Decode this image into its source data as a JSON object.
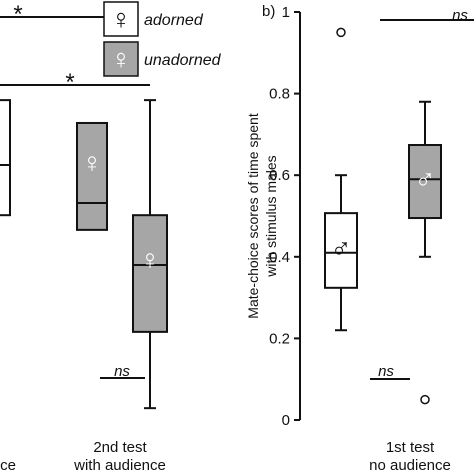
{
  "chart_data": [
    {
      "type": "box",
      "categories": [
        [
          "ce"
        ],
        [
          "2nd test",
          "with audience"
        ]
      ],
      "ylim": [
        0,
        1
      ],
      "annotations": [
        "*",
        "*",
        "ns"
      ],
      "series": [
        {
          "name": "adorned",
          "symbol": "♀",
          "color": "#ffffff",
          "boxes": [
            null,
            {
              "min": 0.213,
              "q1": 0.502,
              "median": 0.625,
              "q3": 0.784,
              "max": 0.784,
              "outliers": []
            }
          ]
        },
        {
          "name": "unadorned",
          "symbol": "♀",
          "color": "#a6a6a6",
          "boxes": [
            {
              "min": null,
              "q1": 0.466,
              "median": 0.532,
              "q3": 0.728,
              "max": null,
              "outliers": []
            },
            {
              "min": 0.029,
              "q1": 0.216,
              "median": 0.38,
              "q3": 0.502,
              "max": 0.784,
              "outliers": []
            }
          ]
        }
      ]
    },
    {
      "type": "box",
      "panel_label": "b)",
      "categories": [
        [
          "1st test",
          "no audience"
        ]
      ],
      "y_label": [
        "Mate-choice scores of time spent",
        "with stimulus males"
      ],
      "ylim": [
        0,
        1
      ],
      "yticks": [
        0,
        0.2,
        0.4,
        0.6,
        0.8,
        1
      ],
      "annotations": [
        "ns",
        "ns"
      ],
      "series": [
        {
          "symbol": "♂",
          "color": "#ffffff",
          "boxes": [
            {
              "min": 0.22,
              "q1": 0.324,
              "median": 0.41,
              "q3": 0.507,
              "max": 0.6,
              "outliers": [
                0.95
              ]
            }
          ]
        },
        {
          "symbol": "♂",
          "color": "#a6a6a6",
          "boxes": [
            {
              "min": 0.4,
              "q1": 0.495,
              "median": 0.59,
              "q3": 0.674,
              "max": 0.78,
              "outliers": [
                0.05
              ]
            }
          ]
        }
      ]
    }
  ]
}
